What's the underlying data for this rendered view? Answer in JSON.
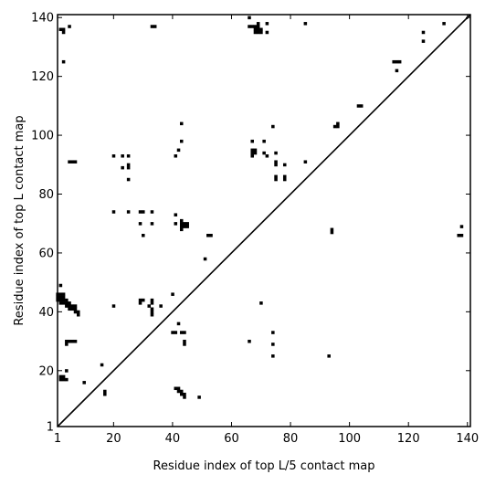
{
  "chart_data": {
    "type": "scatter",
    "xlabel": "Residue index of top L/5 contact map",
    "ylabel": "Residue index of top L contact map",
    "xlim": [
      1,
      141
    ],
    "ylim": [
      1,
      141
    ],
    "x_ticks": [
      "1",
      "20",
      "40",
      "60",
      "80",
      "100",
      "120",
      "140"
    ],
    "x_tick_values": [
      1,
      20,
      40,
      60,
      80,
      100,
      120,
      140
    ],
    "y_ticks": [
      "1",
      "20",
      "40",
      "60",
      "80",
      "100",
      "120",
      "140"
    ],
    "y_tick_values": [
      1,
      20,
      40,
      60,
      80,
      100,
      120,
      140
    ],
    "diagonal": [
      [
        1,
        1
      ],
      [
        141,
        141
      ]
    ],
    "marker_color": "#000000",
    "points": [
      [
        1,
        44
      ],
      [
        1,
        45
      ],
      [
        1,
        46
      ],
      [
        2,
        43
      ],
      [
        2,
        44
      ],
      [
        2,
        45
      ],
      [
        2,
        46
      ],
      [
        2,
        49
      ],
      [
        3,
        43
      ],
      [
        3,
        44
      ],
      [
        3,
        45
      ],
      [
        3,
        46
      ],
      [
        4,
        42
      ],
      [
        4,
        43
      ],
      [
        4,
        44
      ],
      [
        5,
        41
      ],
      [
        5,
        42
      ],
      [
        5,
        43
      ],
      [
        6,
        41
      ],
      [
        6,
        42
      ],
      [
        7,
        40
      ],
      [
        7,
        41
      ],
      [
        7,
        42
      ],
      [
        8,
        39
      ],
      [
        8,
        40
      ],
      [
        4,
        29
      ],
      [
        4,
        30
      ],
      [
        5,
        30
      ],
      [
        6,
        30
      ],
      [
        7,
        30
      ],
      [
        4,
        20
      ],
      [
        2,
        17
      ],
      [
        2,
        18
      ],
      [
        3,
        17
      ],
      [
        3,
        18
      ],
      [
        4,
        17
      ],
      [
        10,
        16
      ],
      [
        16,
        22
      ],
      [
        17,
        12
      ],
      [
        17,
        13
      ],
      [
        2,
        136
      ],
      [
        3,
        135
      ],
      [
        3,
        136
      ],
      [
        5,
        137
      ],
      [
        3,
        125
      ],
      [
        5,
        91
      ],
      [
        6,
        91
      ],
      [
        7,
        91
      ],
      [
        20,
        93
      ],
      [
        23,
        89
      ],
      [
        23,
        93
      ],
      [
        25,
        93
      ],
      [
        25,
        90
      ],
      [
        25,
        89
      ],
      [
        25,
        85
      ],
      [
        20,
        74
      ],
      [
        25,
        74
      ],
      [
        20,
        42
      ],
      [
        29,
        74
      ],
      [
        30,
        74
      ],
      [
        29,
        70
      ],
      [
        30,
        66
      ],
      [
        33,
        74
      ],
      [
        33,
        70
      ],
      [
        29,
        43
      ],
      [
        29,
        44
      ],
      [
        30,
        44
      ],
      [
        32,
        42
      ],
      [
        33,
        39
      ],
      [
        33,
        40
      ],
      [
        33,
        41
      ],
      [
        33,
        43
      ],
      [
        33,
        44
      ],
      [
        36,
        42
      ],
      [
        33,
        137
      ],
      [
        34,
        137
      ],
      [
        40,
        46
      ],
      [
        40,
        33
      ],
      [
        41,
        33
      ],
      [
        42,
        36
      ],
      [
        43,
        33
      ],
      [
        44,
        33
      ],
      [
        44,
        29
      ],
      [
        44,
        30
      ],
      [
        41,
        14
      ],
      [
        42,
        14
      ],
      [
        42,
        13
      ],
      [
        43,
        13
      ],
      [
        43,
        12
      ],
      [
        44,
        12
      ],
      [
        44,
        11
      ],
      [
        49,
        11
      ],
      [
        41,
        93
      ],
      [
        42,
        95
      ],
      [
        43,
        98
      ],
      [
        43,
        104
      ],
      [
        41,
        70
      ],
      [
        41,
        73
      ],
      [
        43,
        68
      ],
      [
        43,
        69
      ],
      [
        43,
        70
      ],
      [
        43,
        71
      ],
      [
        44,
        69
      ],
      [
        44,
        70
      ],
      [
        45,
        69
      ],
      [
        45,
        70
      ],
      [
        51,
        58
      ],
      [
        52,
        66
      ],
      [
        53,
        66
      ],
      [
        66,
        140
      ],
      [
        66,
        137
      ],
      [
        67,
        137
      ],
      [
        68,
        137
      ],
      [
        69,
        137
      ],
      [
        68,
        136
      ],
      [
        69,
        136
      ],
      [
        70,
        136
      ],
      [
        68,
        135
      ],
      [
        69,
        135
      ],
      [
        70,
        135
      ],
      [
        69,
        138
      ],
      [
        72,
        138
      ],
      [
        72,
        135
      ],
      [
        67,
        98
      ],
      [
        67,
        93
      ],
      [
        67,
        94
      ],
      [
        68,
        94
      ],
      [
        68,
        95
      ],
      [
        67,
        95
      ],
      [
        71,
        98
      ],
      [
        71,
        94
      ],
      [
        72,
        93
      ],
      [
        66,
        30
      ],
      [
        70,
        43
      ],
      [
        74,
        103
      ],
      [
        75,
        94
      ],
      [
        75,
        91
      ],
      [
        75,
        90
      ],
      [
        75,
        86
      ],
      [
        75,
        85
      ],
      [
        78,
        90
      ],
      [
        78,
        86
      ],
      [
        78,
        85
      ],
      [
        74,
        33
      ],
      [
        74,
        29
      ],
      [
        74,
        25
      ],
      [
        85,
        138
      ],
      [
        85,
        91
      ],
      [
        94,
        68
      ],
      [
        94,
        67
      ],
      [
        93,
        25
      ],
      [
        95,
        103
      ],
      [
        96,
        103
      ],
      [
        96,
        104
      ],
      [
        103,
        110
      ],
      [
        104,
        110
      ],
      [
        115,
        125
      ],
      [
        116,
        125
      ],
      [
        117,
        125
      ],
      [
        116,
        122
      ],
      [
        125,
        135
      ],
      [
        125,
        132
      ],
      [
        132,
        138
      ],
      [
        138,
        69
      ],
      [
        137,
        66
      ],
      [
        138,
        66
      ]
    ]
  }
}
